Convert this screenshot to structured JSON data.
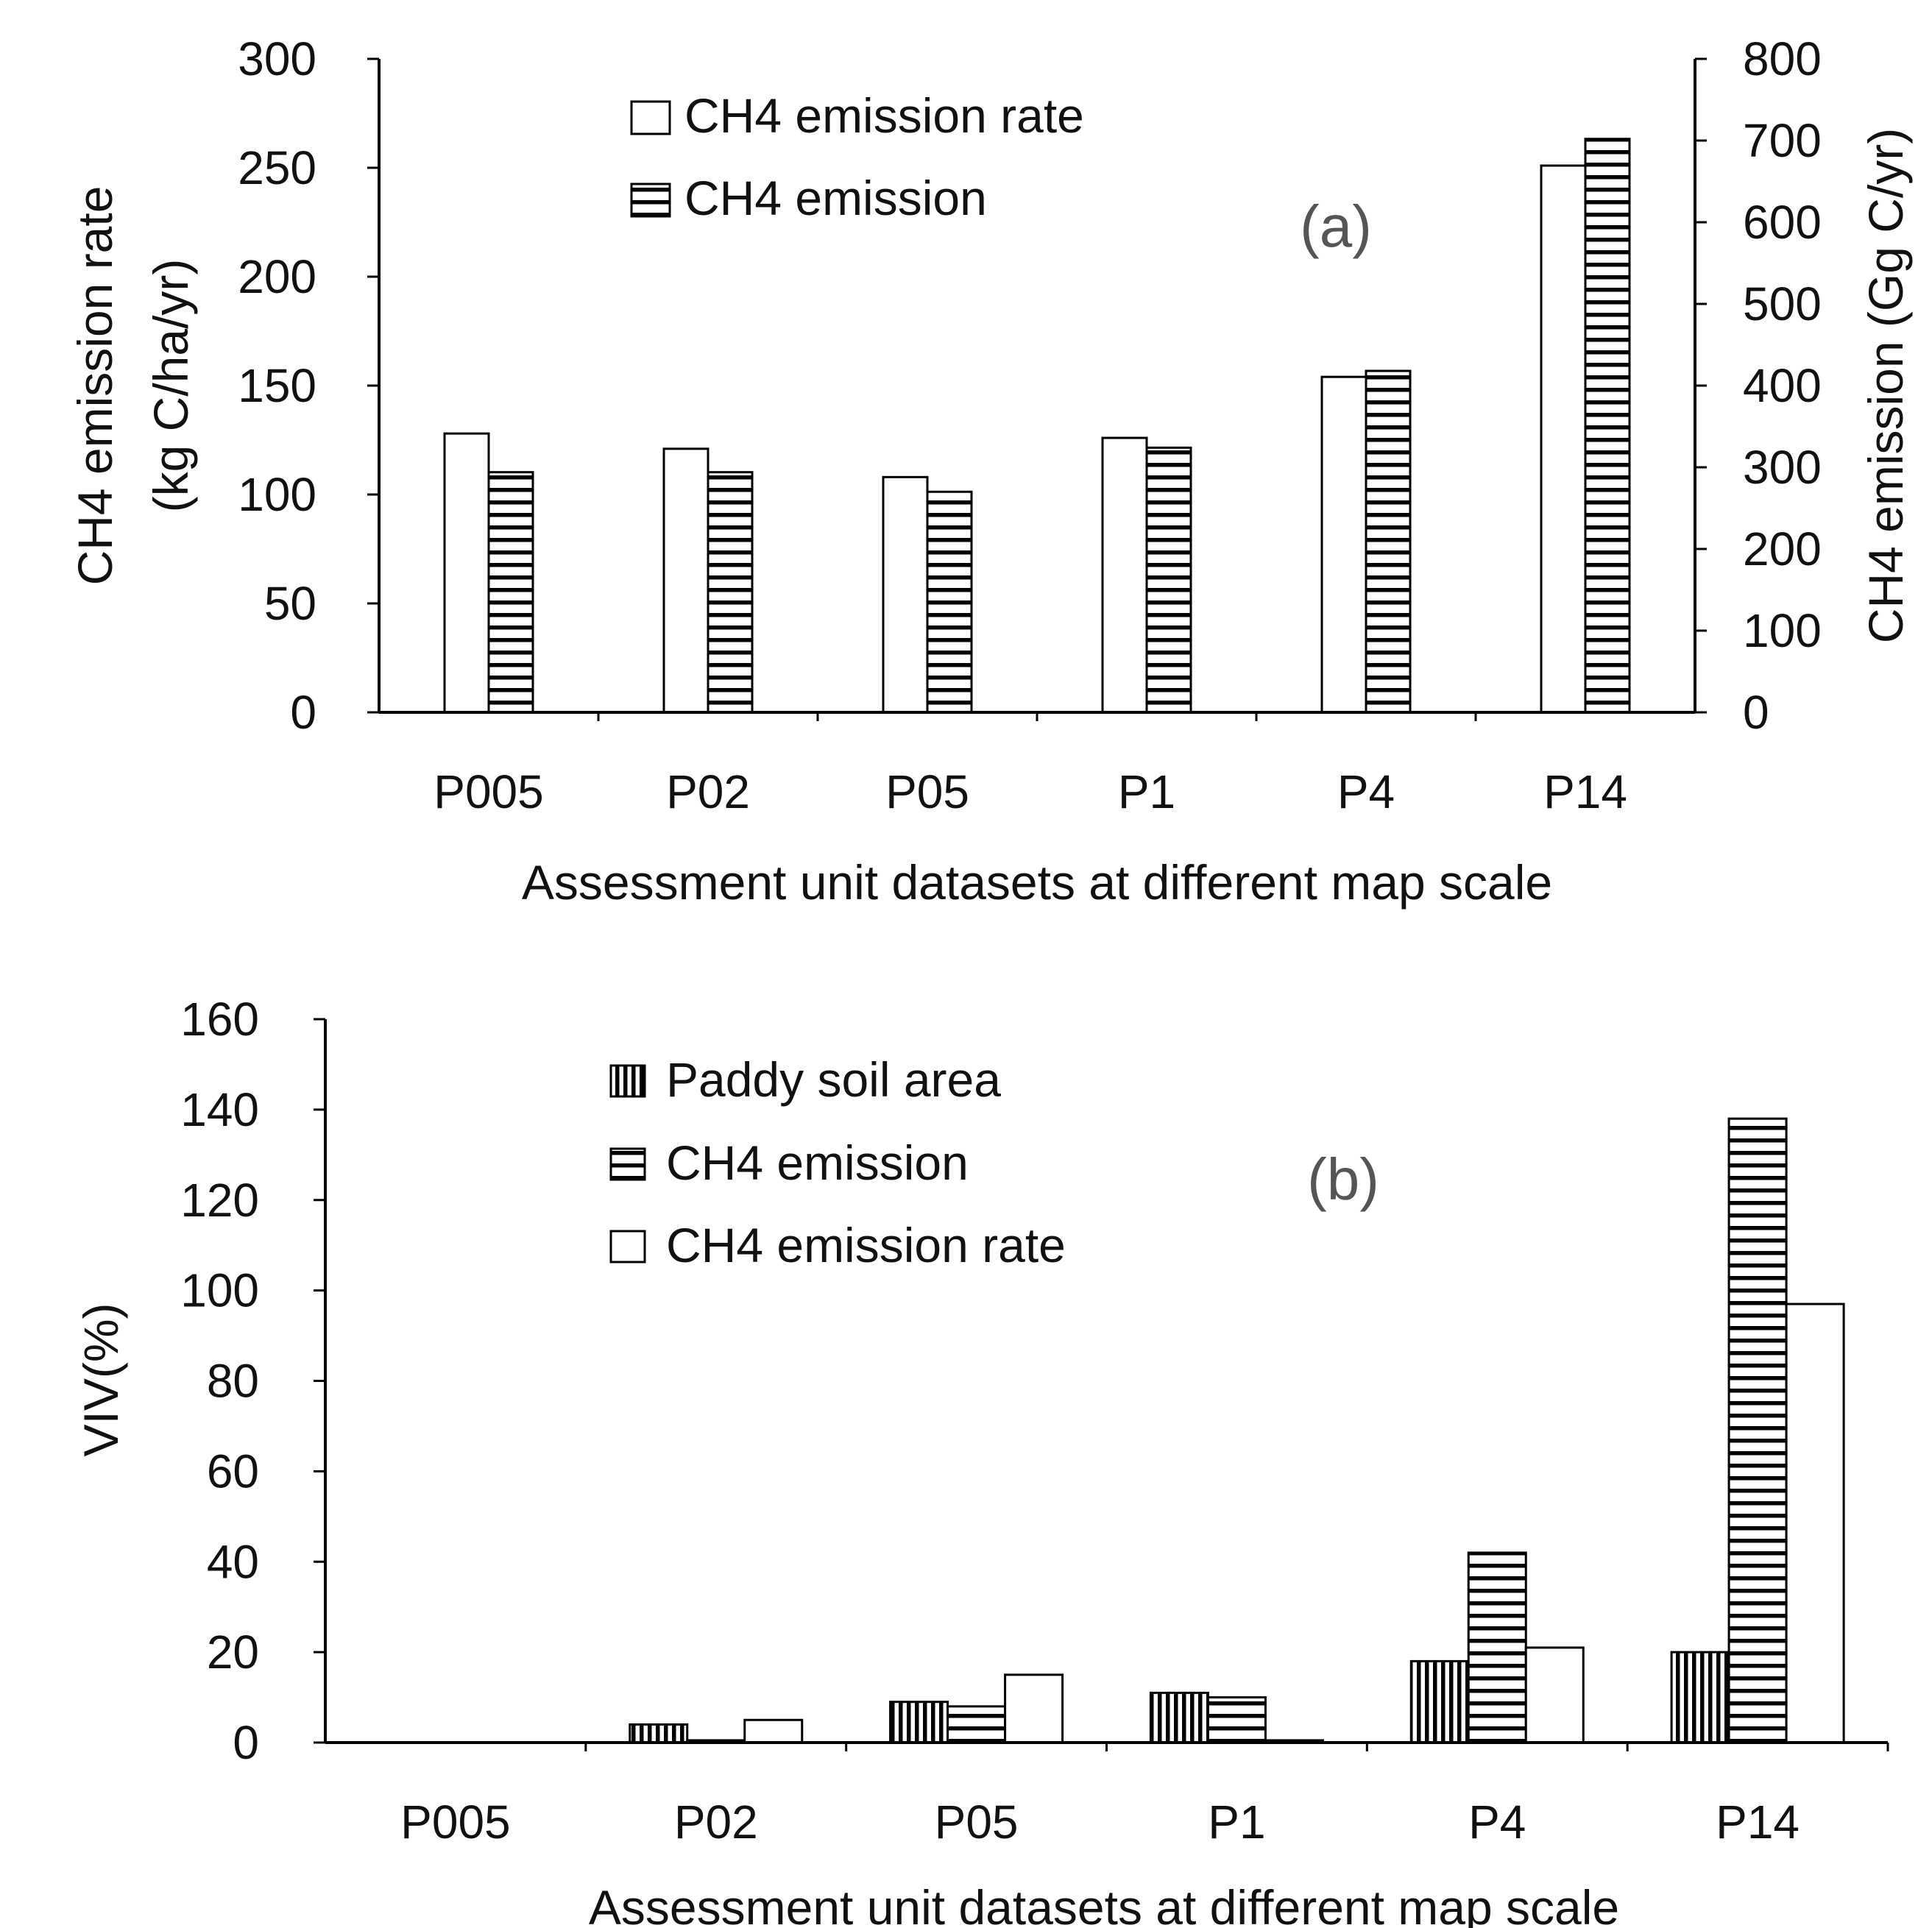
{
  "chart_data": [
    {
      "type": "bar",
      "panel_label": "(a)",
      "categories": [
        "P005",
        "P02",
        "P05",
        "P1",
        "P4",
        "P14"
      ],
      "series": [
        {
          "name": "CH4 emission rate",
          "axis": "left",
          "pattern": "white",
          "values": [
            128,
            121,
            108,
            126,
            154,
            251
          ]
        },
        {
          "name": "CH4 emission",
          "axis": "right",
          "pattern": "horizontal-stripes",
          "values": [
            294,
            294,
            270,
            324,
            418,
            702
          ]
        }
      ],
      "xlabel": "Assessment unit datasets at different map scale",
      "ylabel_left": [
        "CH4 emission rate",
        "(kg C/ha/yr)"
      ],
      "ylabel_right": "CH4 emission (Gg C/yr)",
      "ylim_left": [
        0,
        300
      ],
      "yticks_left": [
        "0",
        "50",
        "100",
        "150",
        "200",
        "250",
        "300"
      ],
      "ylim_right": [
        0,
        800
      ],
      "yticks_right": [
        "0",
        "100",
        "200",
        "300",
        "400",
        "500",
        "600",
        "700",
        "800"
      ],
      "grid": false,
      "legend_position": "top-center"
    },
    {
      "type": "bar",
      "panel_label": "(b)",
      "categories": [
        "P005",
        "P02",
        "P05",
        "P1",
        "P4",
        "P14"
      ],
      "series": [
        {
          "name": "Paddy soil area",
          "pattern": "vertical-stripes",
          "values": [
            0,
            4,
            9,
            11,
            18,
            20
          ]
        },
        {
          "name": "CH4 emission",
          "pattern": "horizontal-stripes",
          "values": [
            0,
            0.5,
            8,
            10,
            42,
            138
          ]
        },
        {
          "name": "CH4 emission rate",
          "pattern": "white",
          "values": [
            0,
            5,
            15,
            0.5,
            21,
            97
          ]
        }
      ],
      "xlabel": "Assessment unit datasets at different map scale",
      "ylabel": "VIV(%)",
      "ylim": [
        0,
        160
      ],
      "yticks": [
        "0",
        "20",
        "40",
        "60",
        "80",
        "100",
        "120",
        "140",
        "160"
      ],
      "grid": false,
      "legend_position": "top-center"
    }
  ]
}
